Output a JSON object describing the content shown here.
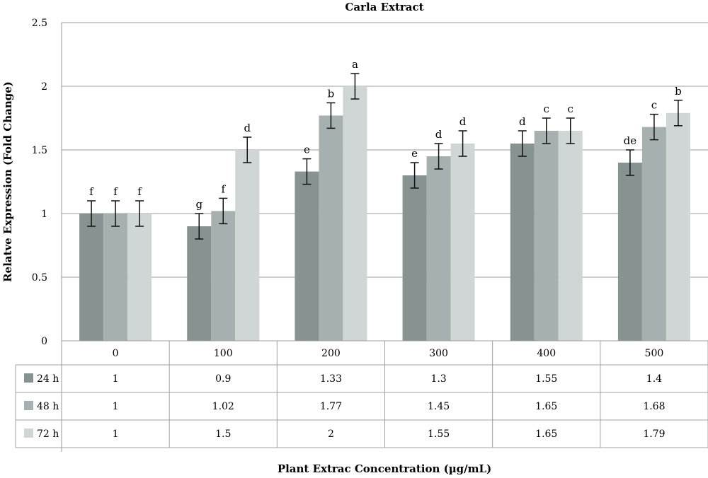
{
  "chart_data": {
    "type": "bar",
    "title": "Carla Extract",
    "xlabel": "Plant Extrac Concentration (µg/mL)",
    "ylabel": "Relatve Expression (Fold Change)",
    "ylim": [
      0,
      2.5
    ],
    "yticks": [
      "0",
      "0.5",
      "1",
      "1.5",
      "2",
      "2.5"
    ],
    "ytick_values": [
      0,
      0.5,
      1,
      1.5,
      2,
      2.5
    ],
    "grid": true,
    "legend": "data-table",
    "categories": [
      "0",
      "100",
      "200",
      "300",
      "400",
      "500"
    ],
    "series": [
      {
        "name": "24 h",
        "color": "#879293",
        "values": [
          1,
          0.9,
          1.33,
          1.3,
          1.55,
          1.4
        ],
        "labels": [
          "1",
          "0.9",
          "1.33",
          "1.3",
          "1.55",
          "1.4"
        ],
        "error": [
          0.1,
          0.1,
          0.1,
          0.1,
          0.1,
          0.1
        ],
        "significance": [
          "f",
          "g",
          "e",
          "e",
          "d",
          "de"
        ]
      },
      {
        "name": "48 h",
        "color": "#a6b0b0",
        "values": [
          1,
          1.02,
          1.77,
          1.45,
          1.65,
          1.68
        ],
        "labels": [
          "1",
          "1.02",
          "1.77",
          "1.45",
          "1.65",
          "1.68"
        ],
        "error": [
          0.1,
          0.1,
          0.1,
          0.1,
          0.1,
          0.1
        ],
        "significance": [
          "f",
          "f",
          "b",
          "d",
          "c",
          "c"
        ]
      },
      {
        "name": "72 h",
        "color": "#d0d6d6",
        "values": [
          1,
          1.5,
          2,
          1.55,
          1.65,
          1.79
        ],
        "labels": [
          "1",
          "1.5",
          "2",
          "1.55",
          "1.65",
          "1.79"
        ],
        "error": [
          0.1,
          0.1,
          0.1,
          0.1,
          0.1,
          0.1
        ],
        "significance": [
          "f",
          "d",
          "a",
          "d",
          "c",
          "b"
        ]
      }
    ]
  }
}
